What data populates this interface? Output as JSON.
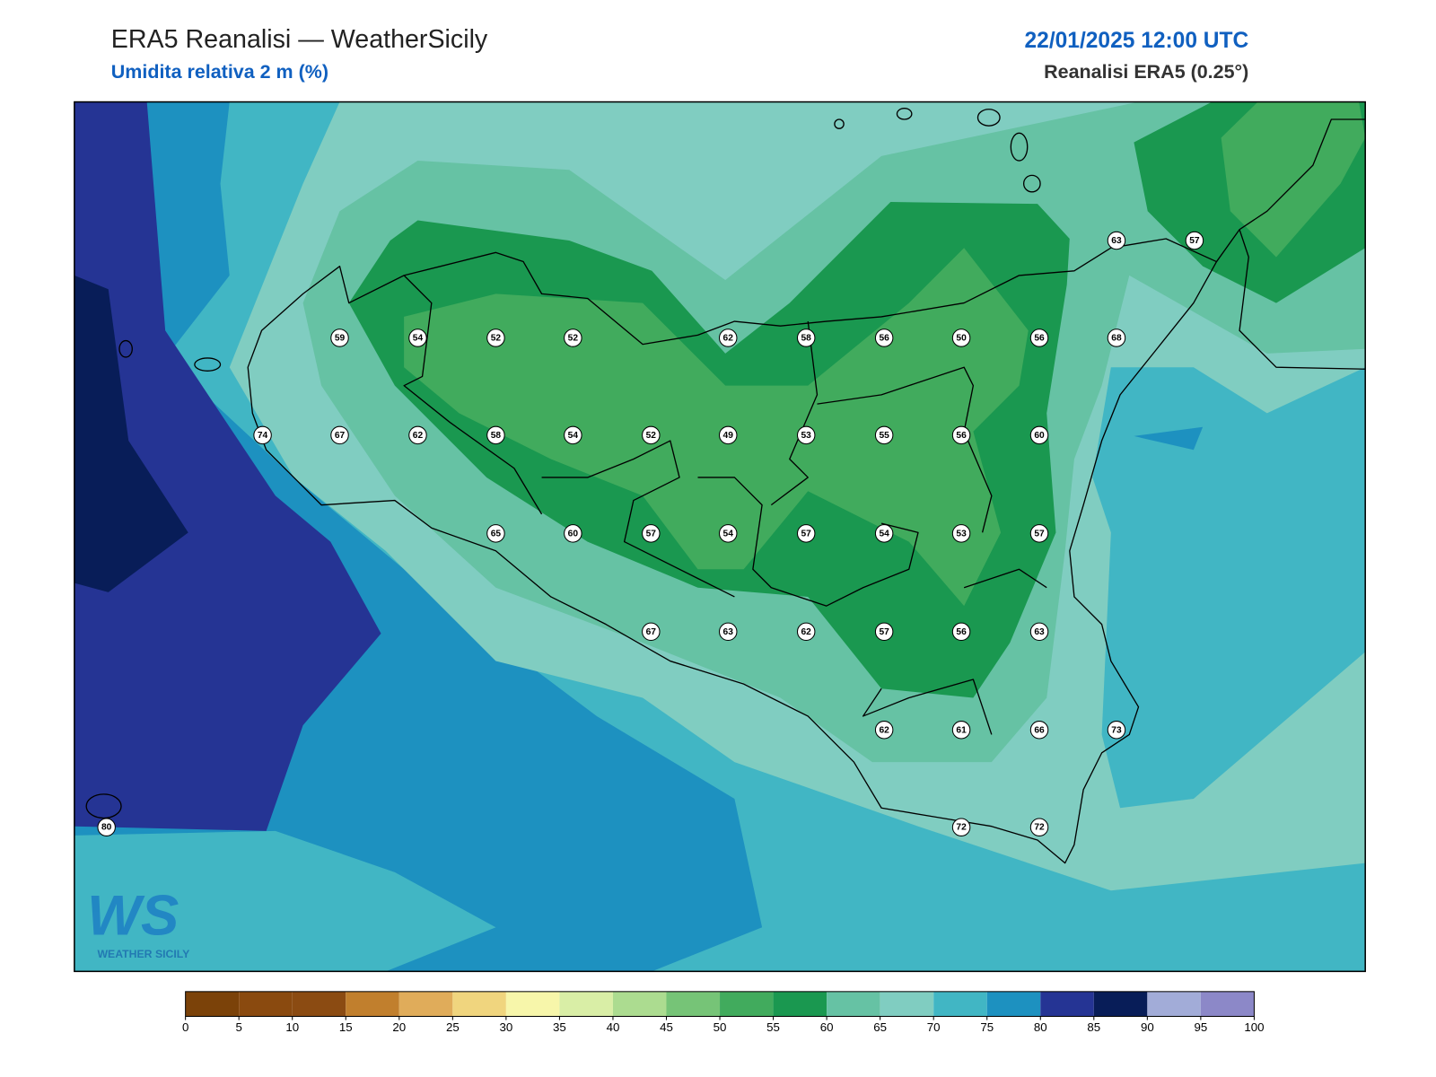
{
  "header": {
    "title": "ERA5 Reanalisi — WeatherSicily",
    "subtitle": "Umidita relativa 2 m (%)",
    "datetime": "22/01/2025 12:00 UTC",
    "source": "Reanalisi ERA5 (0.25°)"
  },
  "stations": [
    63,
    57,
    59,
    54,
    52,
    52,
    62,
    58,
    56,
    50,
    56,
    68,
    74,
    67,
    62,
    58,
    54,
    52,
    49,
    53,
    55,
    56,
    60,
    65,
    60,
    57,
    54,
    57,
    54,
    53,
    57,
    67,
    63,
    62,
    57,
    56,
    63,
    62,
    61,
    66,
    73,
    80,
    72,
    72
  ],
  "colorbar": {
    "ticks": [
      0,
      5,
      10,
      15,
      20,
      25,
      30,
      35,
      40,
      45,
      50,
      55,
      60,
      65,
      70,
      75,
      80,
      85,
      90,
      95,
      100
    ],
    "colors": [
      "#7b4209",
      "#8a4a0f",
      "#8b4b12",
      "#c17f2d",
      "#e0ac5a",
      "#f0d57e",
      "#f7f6aa",
      "#d9eea6",
      "#acdc90",
      "#76c477",
      "#41ab5d",
      "#1a9850",
      "#66c2a4",
      "#80cdc1",
      "#41b6c4",
      "#1d91c0",
      "#253494",
      "#081d58",
      "#a2acd8",
      "#8c88c8"
    ]
  },
  "logo": {
    "mark": "WS",
    "text": "WEATHER SICILY"
  }
}
